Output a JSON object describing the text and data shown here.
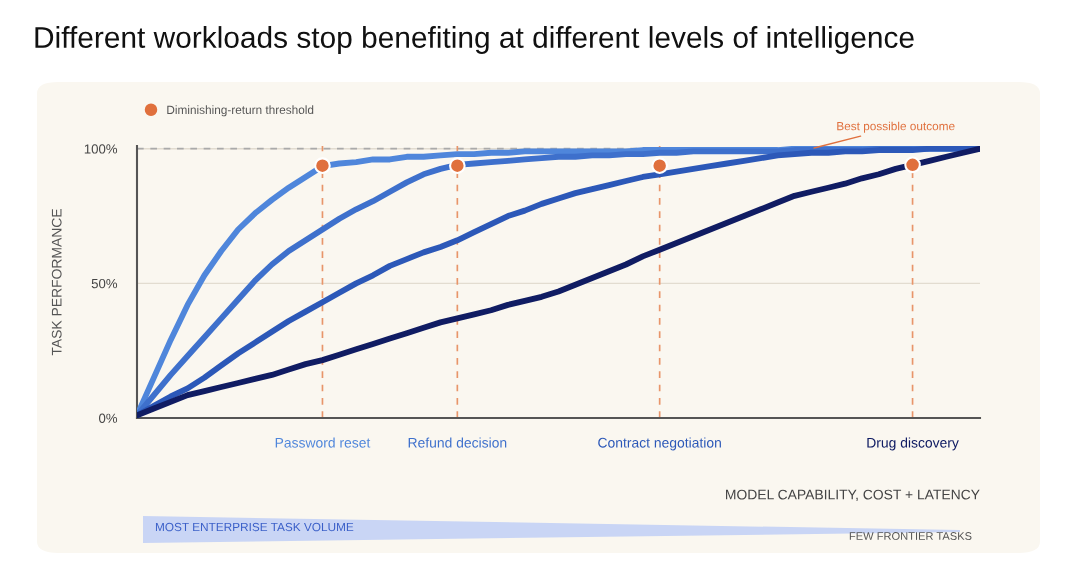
{
  "chart_data": {
    "type": "line",
    "title": "Different workloads stop benefiting at different levels of intelligence",
    "xlabel": "MODEL CAPABILITY, COST + LATENCY",
    "ylabel": "TASK PERFORMANCE",
    "categories": [
      null,
      null,
      null,
      null,
      null,
      null,
      null,
      null,
      null,
      null,
      null,
      "Password reset",
      null,
      null,
      null,
      null,
      null,
      null,
      null,
      "Refund decision",
      null,
      null,
      null,
      null,
      null,
      null,
      null,
      null,
      null,
      null,
      null,
      "Contract negotiation",
      null,
      null,
      null,
      null,
      null,
      null,
      null,
      null,
      null,
      null,
      null,
      null,
      null,
      null,
      "Drug discovery",
      null,
      null,
      null,
      null
    ],
    "ylim": [
      0,
      101
    ],
    "yticks": [
      {
        "value": 0,
        "label": "0%"
      },
      {
        "value": 50,
        "label": "50%"
      },
      {
        "value": 100,
        "label": "100%"
      }
    ],
    "grid": "y",
    "legend": "top left",
    "series": [
      {
        "color": "#4f86db",
        "values": [
          1,
          15,
          29,
          42,
          53,
          62,
          70,
          76,
          81,
          85.5,
          89.5,
          93.5,
          94.5,
          95,
          96,
          96,
          97,
          97,
          97.5,
          98,
          98,
          98.5,
          98.5,
          99,
          99,
          99,
          99,
          99,
          99,
          99,
          99.5,
          99.5,
          99.5,
          99.5,
          99.5,
          99.5,
          99.5,
          99.5,
          99.5,
          100,
          100,
          100,
          100,
          100,
          100,
          100,
          100,
          100,
          100,
          100,
          100
        ]
      },
      {
        "color": "#3e70cc",
        "values": [
          1,
          8.5,
          16,
          23,
          30,
          37,
          44,
          51,
          57,
          62,
          66,
          70,
          74,
          77.5,
          80.5,
          84,
          87.5,
          90.5,
          92.5,
          94,
          94.5,
          95,
          95.5,
          96,
          96.5,
          97,
          97,
          97.5,
          97.5,
          98,
          98,
          98.5,
          98.5,
          99,
          99,
          99,
          99,
          99,
          99,
          99.5,
          99.5,
          99.5,
          99.5,
          99.5,
          100,
          100,
          100,
          100,
          100,
          100,
          100
        ]
      },
      {
        "color": "#2c58b8",
        "values": [
          1,
          4.5,
          8,
          11,
          15,
          19.5,
          24,
          28,
          32,
          36,
          39.5,
          43,
          46.5,
          50,
          53,
          56.5,
          59,
          61.5,
          63.5,
          66,
          69,
          72,
          75,
          77,
          79.5,
          81.5,
          83.5,
          85,
          86.5,
          88,
          89.5,
          90.5,
          91.5,
          92.5,
          93.5,
          94.5,
          95.5,
          96.5,
          97.5,
          98,
          98.5,
          98.5,
          99,
          99,
          99.5,
          99.5,
          99.5,
          100,
          100,
          100,
          100
        ]
      },
      {
        "color": "#101c63",
        "values": [
          1,
          3.5,
          6,
          8.5,
          10,
          11.5,
          13,
          14.5,
          16,
          18,
          20,
          21.5,
          23.5,
          25.5,
          27.5,
          29.5,
          31.5,
          33.5,
          35.5,
          37,
          38.5,
          40,
          42,
          43.5,
          45,
          47,
          49.5,
          52,
          54.5,
          57,
          60,
          62.5,
          65,
          67.5,
          70,
          72.5,
          75,
          77.5,
          80,
          82.5,
          84,
          85.5,
          87,
          89,
          90.5,
          92.5,
          94,
          95.5,
          97,
          98.5,
          100
        ]
      },
      {
        "type": "scatter",
        "name": "Diminishing-return threshold",
        "color": "#e0703d",
        "marker": "circle",
        "values": [
          null,
          null,
          null,
          null,
          null,
          null,
          null,
          null,
          null,
          null,
          null,
          93.7,
          null,
          null,
          null,
          null,
          null,
          null,
          null,
          93.7,
          null,
          null,
          null,
          null,
          null,
          null,
          null,
          null,
          null,
          null,
          null,
          93.7,
          null,
          null,
          null,
          null,
          null,
          null,
          null,
          null,
          null,
          null,
          null,
          null,
          null,
          null,
          94,
          null,
          null,
          null,
          null
        ]
      }
    ],
    "ref_lines": [
      {
        "axis": "y",
        "value": 100,
        "color": "#aaaaaa",
        "line_style": "dashed"
      },
      {
        "axis": "x",
        "value": "Password reset",
        "color": "#e8956a",
        "line_style": "dashed"
      },
      {
        "axis": "x",
        "value": "Refund decision",
        "color": "#e8956a",
        "line_style": "dashed"
      },
      {
        "axis": "x",
        "value": "Contract negotiation",
        "color": "#e8956a",
        "line_style": "dashed"
      },
      {
        "axis": "x",
        "value": "Drug discovery",
        "color": "#e8956a",
        "line_style": "dashed"
      }
    ],
    "annotations": [
      {
        "text": "Best possible outcome",
        "y": 100
      },
      "MOST ENTERPRISE TASK VOLUME",
      "FEW FRONTIER TASKS"
    ]
  }
}
